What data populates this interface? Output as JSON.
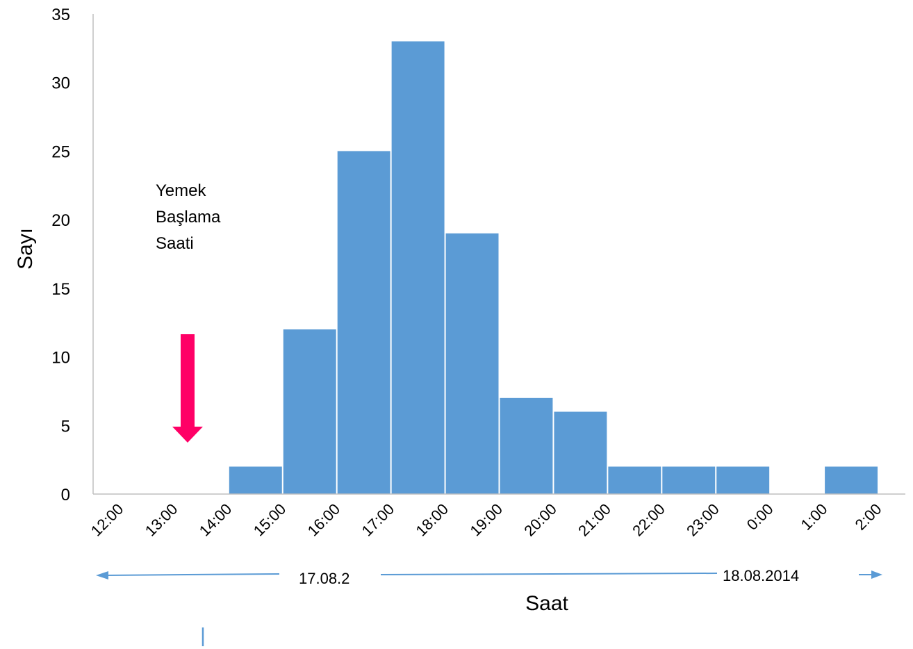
{
  "chart_data": {
    "type": "bar",
    "title": "",
    "xlabel": "Saat",
    "ylabel": "Sayı",
    "ylim": [
      0,
      35
    ],
    "yticks": [
      0,
      5,
      10,
      15,
      20,
      25,
      30,
      35
    ],
    "xticks": [
      "12:00",
      "13:00",
      "14:00",
      "15:00",
      "16:00",
      "17:00",
      "18:00",
      "19:00",
      "20:00",
      "21:00",
      "22:00",
      "23:00",
      "0:00",
      "1:00",
      "2:00"
    ],
    "series": [
      {
        "values": [
          0,
          0,
          2,
          12,
          25,
          33,
          19,
          7,
          6,
          2,
          2,
          2,
          0,
          2
        ]
      }
    ],
    "bar_color": "#5b9bd5",
    "arrow_color": "#ff0066",
    "date_arrow_color": "#5b9bd5",
    "grid": false,
    "legend": "none",
    "annotations": {
      "meal_start_lines": [
        "Yemek",
        "Başlama",
        "Saati"
      ],
      "date_left": "17.08.2",
      "date_right": "18.08.2014"
    }
  }
}
